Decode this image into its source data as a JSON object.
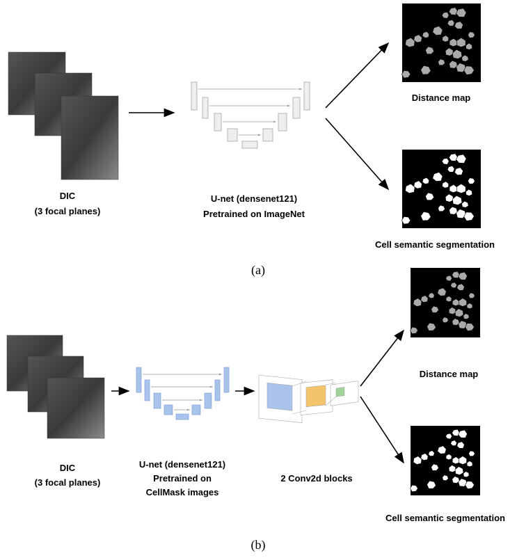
{
  "panels": [
    {
      "label": "(a)",
      "input": {
        "lines": [
          "DIC",
          "(3 focal planes)"
        ]
      },
      "model": {
        "lines": [
          "U-net (densenet121)",
          "Pretrained on ImageNet"
        ]
      },
      "outputs": [
        "Distance map",
        "Cell semantic segmentation"
      ]
    },
    {
      "label": "(b)",
      "input": {
        "lines": [
          "DIC",
          "(3 focal planes)"
        ]
      },
      "model": {
        "lines": [
          "U-net (densenet121)",
          "Pretrained on",
          "CellMask images"
        ]
      },
      "head": "2 Conv2d blocks",
      "outputs": [
        "Distance map",
        "Cell semantic segmentation"
      ]
    }
  ]
}
